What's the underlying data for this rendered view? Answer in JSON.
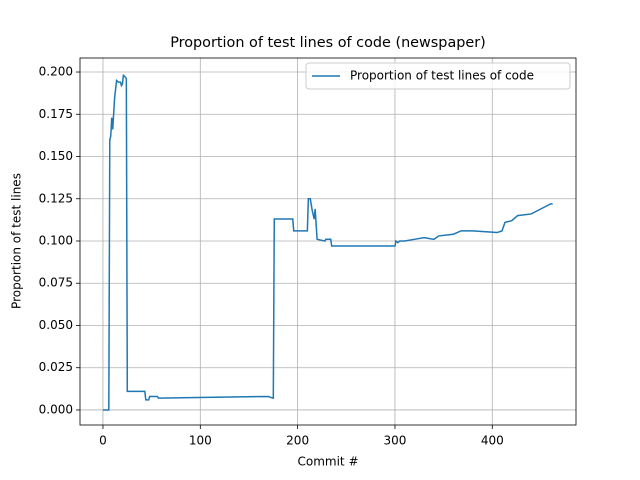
{
  "chart_data": {
    "type": "line",
    "title": "Proportion of test lines of code (newspaper)",
    "x_label": "Commit #",
    "y_label": "Proportion of test lines",
    "x": [
      0,
      6,
      7,
      8,
      9,
      10,
      12,
      14,
      16,
      18,
      19,
      20,
      21,
      23,
      24,
      25,
      43,
      44,
      47,
      48,
      56,
      57,
      170,
      172,
      175,
      176,
      195,
      196,
      210,
      211,
      213,
      215,
      217,
      218,
      220,
      228,
      229,
      234,
      235,
      240,
      300,
      301,
      303,
      305,
      310,
      320,
      330,
      340,
      345,
      360,
      368,
      380,
      405,
      410,
      413,
      420,
      426,
      440,
      450,
      460,
      462
    ],
    "series": [
      {
        "name": "Proportion of test lines of code",
        "color": "#1f77b4",
        "values": [
          0,
          0,
          0.16,
          0.162,
          0.173,
          0.166,
          0.185,
          0.195,
          0.194,
          0.194,
          0.192,
          0.193,
          0.198,
          0.197,
          0.196,
          0.011,
          0.011,
          0.006,
          0.006,
          0.008,
          0.008,
          0.007,
          0.008,
          0.0075,
          0.007,
          0.113,
          0.113,
          0.106,
          0.106,
          0.125,
          0.125,
          0.118,
          0.113,
          0.119,
          0.101,
          0.1,
          0.101,
          0.101,
          0.097,
          0.097,
          0.097,
          0.1,
          0.099,
          0.1,
          0.1,
          0.101,
          0.102,
          0.101,
          0.103,
          0.104,
          0.106,
          0.106,
          0.105,
          0.106,
          0.111,
          0.112,
          0.115,
          0.116,
          0.119,
          0.122,
          0.122
        ]
      }
    ],
    "xlim": [
      -23.6,
      486
    ],
    "ylim": [
      -0.0089,
      0.2083
    ],
    "xticks": [
      0,
      100,
      200,
      300,
      400
    ],
    "yticks": [
      {
        "value": 0,
        "label": "0.000"
      },
      {
        "value": 0.025,
        "label": "0.025"
      },
      {
        "value": 0.05,
        "label": "0.050"
      },
      {
        "value": 0.075,
        "label": "0.075"
      },
      {
        "value": 0.1,
        "label": "0.100"
      },
      {
        "value": 0.125,
        "label": "0.125"
      },
      {
        "value": 0.15,
        "label": "0.150"
      },
      {
        "value": 0.175,
        "label": "0.175"
      },
      {
        "value": 0.2,
        "label": "0.200"
      }
    ],
    "grid": true,
    "legend": "upper right"
  }
}
